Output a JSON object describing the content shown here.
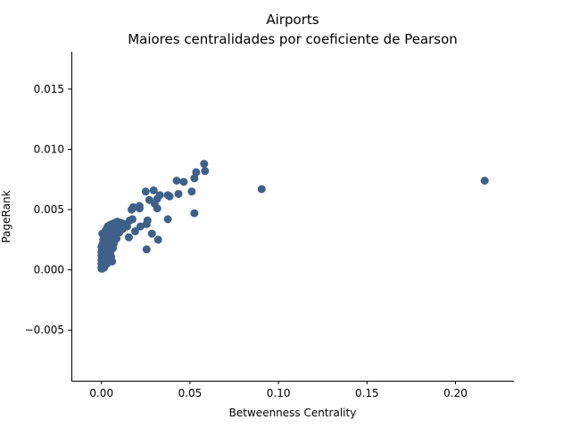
{
  "chart_data": {
    "type": "scatter",
    "title": "Airports",
    "subtitle": "Maiores centralidades por coeficiente de Pearson",
    "xlabel": "Betweenness Centrality",
    "ylabel": "PageRank",
    "xlim": [
      -0.017,
      0.233
    ],
    "ylim": [
      -0.0092,
      0.0181
    ],
    "xticks": [
      {
        "value": 0.0,
        "label": "0.00"
      },
      {
        "value": 0.05,
        "label": "0.05"
      },
      {
        "value": 0.1,
        "label": "0.10"
      },
      {
        "value": 0.15,
        "label": "0.15"
      },
      {
        "value": 0.2,
        "label": "0.20"
      }
    ],
    "yticks": [
      {
        "value": -0.005,
        "label": "−0.005"
      },
      {
        "value": 0.0,
        "label": "0.000"
      },
      {
        "value": 0.005,
        "label": "0.005"
      },
      {
        "value": 0.01,
        "label": "0.010"
      },
      {
        "value": 0.015,
        "label": "0.015"
      }
    ],
    "grid": false,
    "marker_color": "#3f6089",
    "points": [
      [
        0.2165,
        0.0074
      ],
      [
        0.0905,
        0.0067
      ],
      [
        0.058,
        0.0088
      ],
      [
        0.0585,
        0.0082
      ],
      [
        0.0535,
        0.0081
      ],
      [
        0.0525,
        0.0076
      ],
      [
        0.051,
        0.0065
      ],
      [
        0.0465,
        0.0073
      ],
      [
        0.0425,
        0.0074
      ],
      [
        0.0435,
        0.0063
      ],
      [
        0.0525,
        0.0047
      ],
      [
        0.0385,
        0.0061
      ],
      [
        0.0375,
        0.0062
      ],
      [
        0.033,
        0.0062
      ],
      [
        0.0295,
        0.0066
      ],
      [
        0.0315,
        0.0059
      ],
      [
        0.025,
        0.0065
      ],
      [
        0.027,
        0.0058
      ],
      [
        0.03,
        0.0055
      ],
      [
        0.0315,
        0.0051
      ],
      [
        0.0375,
        0.0042
      ],
      [
        0.0255,
        0.0038
      ],
      [
        0.026,
        0.0041
      ],
      [
        0.022,
        0.0036
      ],
      [
        0.0215,
        0.0051
      ],
      [
        0.0215,
        0.0053
      ],
      [
        0.018,
        0.0052
      ],
      [
        0.017,
        0.005
      ],
      [
        0.0175,
        0.0042
      ],
      [
        0.016,
        0.0041
      ],
      [
        0.0285,
        0.003
      ],
      [
        0.032,
        0.0025
      ],
      [
        0.0255,
        0.0017
      ],
      [
        0.019,
        0.0032
      ],
      [
        0.0155,
        0.0027
      ],
      [
        0.0145,
        0.0036
      ],
      [
        0.013,
        0.0038
      ],
      [
        0.011,
        0.0039
      ],
      [
        0.009,
        0.004
      ],
      [
        0.0075,
        0.0039
      ],
      [
        0.006,
        0.0038
      ],
      [
        0.0045,
        0.0037
      ],
      [
        0.012,
        0.0034
      ],
      [
        0.01,
        0.0031
      ],
      [
        0.008,
        0.0033
      ],
      [
        0.0065,
        0.0028
      ],
      [
        0.0055,
        0.0025
      ],
      [
        0.0045,
        0.0032
      ],
      [
        0.0035,
        0.0029
      ],
      [
        0.003,
        0.0026
      ],
      [
        0.0025,
        0.0023
      ],
      [
        0.002,
        0.002
      ],
      [
        0.0015,
        0.0018
      ],
      [
        0.001,
        0.0015
      ],
      [
        0.0005,
        0.0012
      ],
      [
        0.0003,
        0.0009
      ],
      [
        0.0002,
        0.0006
      ],
      [
        0.0001,
        0.0004
      ],
      [
        0.0,
        0.0002
      ],
      [
        0.0,
        0.0001
      ],
      [
        0.0005,
        0.0003
      ],
      [
        0.001,
        0.0005
      ],
      [
        0.0015,
        0.0007
      ],
      [
        0.002,
        0.0004
      ],
      [
        0.0025,
        0.0006
      ],
      [
        0.003,
        0.0005
      ],
      [
        0.0035,
        0.0009
      ],
      [
        0.004,
        0.0012
      ],
      [
        0.0045,
        0.0008
      ],
      [
        0.005,
        0.0015
      ],
      [
        0.0055,
        0.0011
      ],
      [
        0.006,
        0.0007
      ],
      [
        0.0065,
        0.0018
      ],
      [
        0.007,
        0.0022
      ],
      [
        0.0075,
        0.003
      ],
      [
        0.0085,
        0.0026
      ],
      [
        0.0095,
        0.0035
      ],
      [
        0.004,
        0.002
      ],
      [
        0.0035,
        0.0017
      ],
      [
        0.003,
        0.0014
      ],
      [
        0.0025,
        0.0011
      ],
      [
        0.002,
        0.0009
      ],
      [
        0.0015,
        0.0028
      ],
      [
        0.001,
        0.0025
      ],
      [
        0.0005,
        0.0021
      ],
      [
        0.0005,
        0.0018
      ],
      [
        0.0,
        0.0015
      ],
      [
        0.0,
        0.0012
      ],
      [
        0.0,
        0.0008
      ],
      [
        0.0,
        0.0005
      ],
      [
        0.001,
        0.0003
      ],
      [
        0.0005,
        0.0001
      ],
      [
        0.0015,
        0.0002
      ],
      [
        0.0,
        0.0019
      ],
      [
        0.0005,
        0.003
      ],
      [
        0.0045,
        0.0024
      ],
      [
        0.005,
        0.0029
      ],
      [
        0.0055,
        0.0034
      ],
      [
        0.0035,
        0.0036
      ],
      [
        0.0025,
        0.0033
      ]
    ]
  }
}
